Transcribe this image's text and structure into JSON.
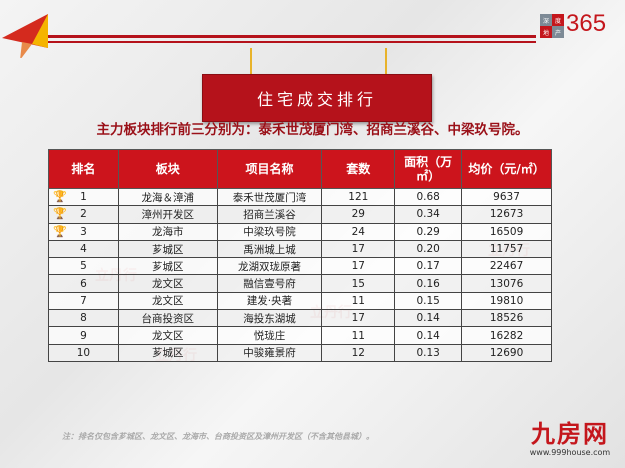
{
  "brand": {
    "cells": [
      "深",
      "度",
      "地",
      "产"
    ],
    "number": "365"
  },
  "banner_title": "住宅成交排行",
  "subtitle": "主力板块排行前三分别为：泰禾世茂厦门湾、招商兰溪谷、中梁玖号院。",
  "table": {
    "headers": [
      "排名",
      "板块",
      "项目名称",
      "套数",
      "面积（万㎡）",
      "均价（元/㎡）"
    ],
    "rows": [
      {
        "rank": "1",
        "district": "龙海＆漳浦",
        "project": "泰禾世茂厦门湾",
        "units": "121",
        "area": "0.68",
        "price": "9637",
        "trophy": "gold"
      },
      {
        "rank": "2",
        "district": "漳州开发区",
        "project": "招商兰溪谷",
        "units": "29",
        "area": "0.34",
        "price": "12673",
        "trophy": "silver"
      },
      {
        "rank": "3",
        "district": "龙海市",
        "project": "中梁玖号院",
        "units": "24",
        "area": "0.29",
        "price": "16509",
        "trophy": "bronze"
      },
      {
        "rank": "4",
        "district": "芗城区",
        "project": "禹洲城上城",
        "units": "17",
        "area": "0.20",
        "price": "11757"
      },
      {
        "rank": "5",
        "district": "芗城区",
        "project": "龙湖双珑原著",
        "units": "17",
        "area": "0.17",
        "price": "22467"
      },
      {
        "rank": "6",
        "district": "龙文区",
        "project": "融信壹号府",
        "units": "15",
        "area": "0.16",
        "price": "13076"
      },
      {
        "rank": "7",
        "district": "龙文区",
        "project": "建发·央著",
        "units": "11",
        "area": "0.15",
        "price": "19810"
      },
      {
        "rank": "8",
        "district": "台商投资区",
        "project": "海投东湖城",
        "units": "17",
        "area": "0.14",
        "price": "18526"
      },
      {
        "rank": "9",
        "district": "龙文区",
        "project": "悦珑庄",
        "units": "11",
        "area": "0.14",
        "price": "16282"
      },
      {
        "rank": "10",
        "district": "芗城区",
        "project": "中骏雍景府",
        "units": "12",
        "area": "0.13",
        "price": "12690"
      }
    ]
  },
  "note": "注：排名仅包含芗城区、龙文区、龙海市、台商投资区及漳州开发区（不含其他县城）。",
  "watermark": "立丹行",
  "footer_logo": {
    "name": "九房网",
    "url": "www.999house.com"
  },
  "colors": {
    "accent": "#b5121b",
    "header": "#cc141c",
    "gold": "#e0a81e",
    "silver": "#bdbdbd"
  }
}
